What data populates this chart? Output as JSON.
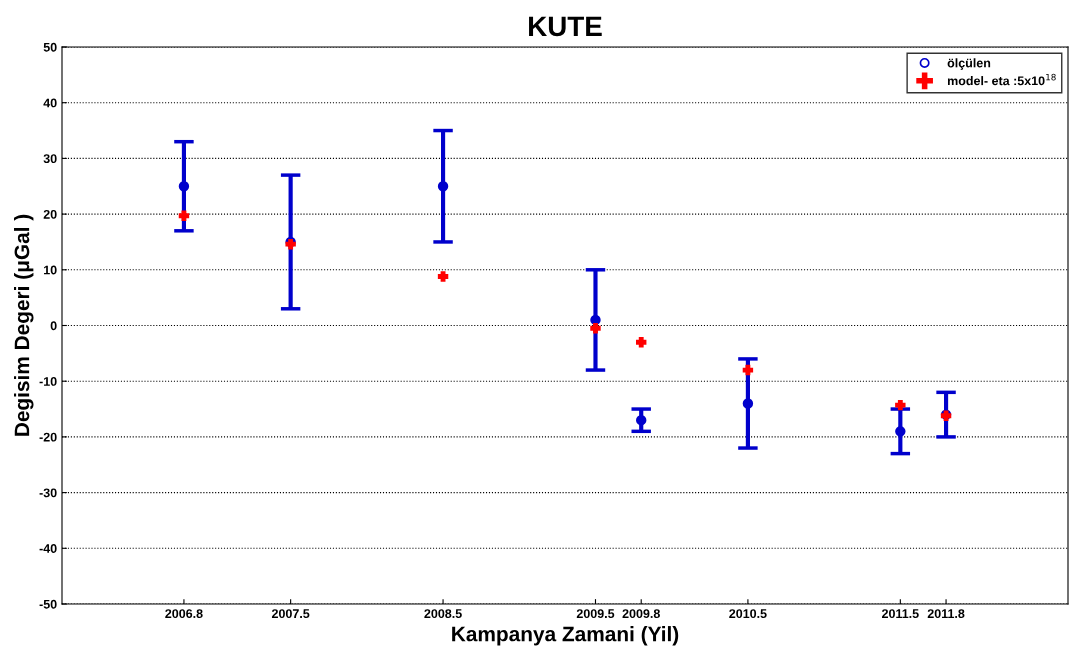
{
  "chart_data": {
    "type": "scatter",
    "title": "KUTE",
    "xlabel": "Kampanya Zamani (Yil)",
    "ylabel": "Degisim Degeri (μGal )",
    "x": [
      2006.8,
      2007.5,
      2008.5,
      2009.5,
      2009.8,
      2010.5,
      2011.5,
      2011.8
    ],
    "series": [
      {
        "name": "ölçülen",
        "color": "#0000cc",
        "marker": "circle",
        "values": [
          25,
          15,
          25,
          1,
          -17,
          -14,
          -19,
          -16
        ],
        "errors": [
          8,
          12,
          10,
          9,
          2,
          8,
          4,
          4
        ]
      },
      {
        "name": "model- eta :5x10$^{18}$",
        "color": "#ff0000",
        "marker": "cross",
        "values": [
          19.7,
          14.6,
          8.8,
          -0.5,
          -3,
          -8,
          -14.3,
          -16.2
        ]
      }
    ],
    "xlim": [
      2006,
      2012.6
    ],
    "xticks": [
      2006.8,
      2007.5,
      2008.5,
      2009.5,
      2009.8,
      2010.5,
      2011.5,
      2011.8
    ],
    "ylim": [
      -50,
      50
    ],
    "yticks": [
      -50,
      -40,
      -30,
      -20,
      -10,
      0,
      10,
      20,
      30,
      40,
      50
    ],
    "grid": "y",
    "legend": "top right"
  }
}
